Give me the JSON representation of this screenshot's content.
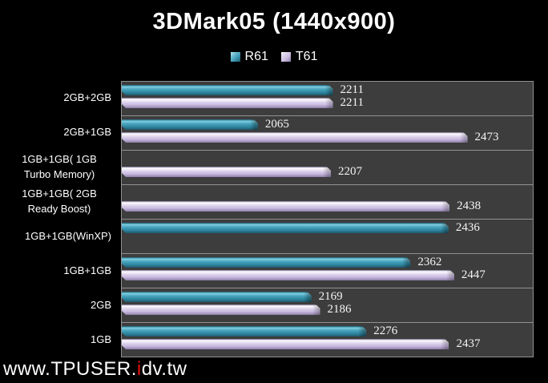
{
  "title": "3DMark05 (1440x900)",
  "watermark": {
    "prefix": "www.TPUSER.",
    "accent": "i",
    "suffix": "dv.tw",
    "accent_color": "#e81212",
    "text_color": "#fdfdfd"
  },
  "colors": {
    "background": "#000000",
    "plot_background": "#3d3d3d",
    "gridline": "#919191",
    "series_r61": "#3e9ab4",
    "series_t61": "#cabbdf",
    "value_label": "#f5f5f5"
  },
  "chart_data": {
    "type": "bar",
    "orientation": "horizontal",
    "title": "3DMark05 (1440x900)",
    "xlabel": "",
    "ylabel": "",
    "legend_position": "top-center",
    "grid": "category-separator-lines",
    "value_axis": {
      "min": 1800,
      "max": 2600,
      "tick_labels_visible": false
    },
    "categories": [
      "2GB+2GB",
      "2GB+1GB",
      "1GB+1GB( 1GB Turbo Memory)",
      "1GB+1GB( 2GB Ready Boost)",
      "1GB+1GB(WinXP)",
      "1GB+1GB",
      "2GB",
      "1GB"
    ],
    "series": [
      {
        "name": "R61",
        "color": "#3e9ab4",
        "values": [
          2211,
          2065,
          null,
          null,
          2436,
          2362,
          2169,
          2276
        ]
      },
      {
        "name": "T61",
        "color": "#cabbdf",
        "values": [
          2211,
          2473,
          2207,
          2438,
          null,
          2447,
          2186,
          2437
        ]
      }
    ]
  }
}
